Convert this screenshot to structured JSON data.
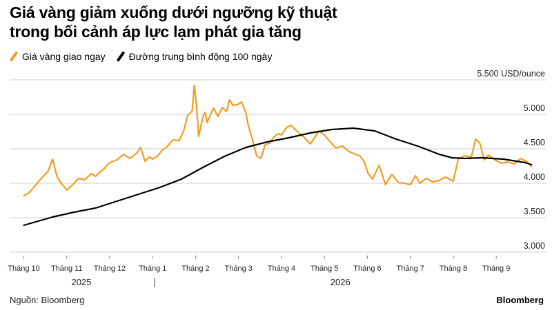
{
  "title_lines": [
    "Giá vàng giảm xuống dưới ngưỡng kỹ thuật",
    "trong bối cảnh áp lực lạm phát gia tăng"
  ],
  "legend": [
    {
      "label": "Giá vàng giao ngay",
      "color": "#f39c1f"
    },
    {
      "label": "Đường trung bình động 100 ngày",
      "color": "#000000"
    }
  ],
  "source": "Nguồn: Bloomberg",
  "brand": "Bloomberg",
  "chart_data": {
    "type": "line",
    "title": "Giá vàng giảm xuống dưới ngưỡng kỹ thuật trong bối cảnh áp lực lạm phát gia tăng",
    "ylabel": "5.500 USD/ounce",
    "ylim": [
      3000,
      5500
    ],
    "yticks": [
      {
        "value": 5500,
        "label": "5.500 USD/ounce"
      },
      {
        "value": 5000,
        "label": "5.000"
      },
      {
        "value": 4500,
        "label": "4.500"
      },
      {
        "value": 4000,
        "label": "4.000"
      },
      {
        "value": 3500,
        "label": "3.500"
      },
      {
        "value": 3000,
        "label": "3.000"
      }
    ],
    "xlim": [
      0,
      12.5
    ],
    "xticks": [
      {
        "value": 0.33,
        "label": "Tháng 10"
      },
      {
        "value": 1.33,
        "label": "Tháng 11"
      },
      {
        "value": 2.33,
        "label": "Tháng 12"
      },
      {
        "value": 3.33,
        "label": "Tháng 1"
      },
      {
        "value": 4.33,
        "label": "Tháng 2"
      },
      {
        "value": 5.33,
        "label": "Tháng 3"
      },
      {
        "value": 6.33,
        "label": "Tháng 4"
      },
      {
        "value": 7.33,
        "label": "Tháng 5"
      },
      {
        "value": 8.33,
        "label": "Tháng 6"
      },
      {
        "value": 9.33,
        "label": "Tháng 7"
      },
      {
        "value": 10.33,
        "label": "Tháng 8"
      },
      {
        "value": 11.33,
        "label": "Tháng 9"
      }
    ],
    "year_labels": [
      {
        "value": 1.67,
        "label": "2025"
      },
      {
        "value": 7.7,
        "label": "2026"
      }
    ],
    "year_divider": 3.37,
    "grid": true,
    "legend_position": "top-left",
    "series": [
      {
        "name": "Giá vàng giao ngay",
        "color": "#f39c1f",
        "x": [
          0.33,
          0.45,
          0.6,
          0.75,
          0.9,
          1.0,
          1.1,
          1.2,
          1.3,
          1.33,
          1.5,
          1.6,
          1.75,
          1.9,
          2.0,
          2.1,
          2.2,
          2.33,
          2.5,
          2.65,
          2.8,
          2.95,
          3.05,
          3.15,
          3.25,
          3.33,
          3.45,
          3.55,
          3.65,
          3.8,
          3.95,
          4.05,
          4.15,
          4.25,
          4.3,
          4.35,
          4.4,
          4.5,
          4.55,
          4.6,
          4.7,
          4.75,
          4.85,
          4.95,
          5.05,
          5.12,
          5.2,
          5.3,
          5.4,
          5.5,
          5.55,
          5.65,
          5.75,
          5.85,
          5.95,
          6.05,
          6.15,
          6.25,
          6.33,
          6.45,
          6.55,
          6.7,
          6.85,
          7.0,
          7.1,
          7.2,
          7.33,
          7.45,
          7.6,
          7.75,
          7.9,
          8.05,
          8.15,
          8.25,
          8.35,
          8.45,
          8.6,
          8.75,
          8.9,
          9.05,
          9.2,
          9.33,
          9.45,
          9.55,
          9.7,
          9.85,
          10.0,
          10.15,
          10.33,
          10.45,
          10.6,
          10.75,
          10.85,
          10.95,
          11.05,
          11.15,
          11.3,
          11.45,
          11.6,
          11.75,
          11.9,
          12.05,
          12.15
        ],
        "values": [
          3820,
          3860,
          3970,
          4080,
          4180,
          4350,
          4100,
          4000,
          3930,
          3900,
          4000,
          4070,
          4050,
          4140,
          4100,
          4160,
          4210,
          4300,
          4340,
          4420,
          4360,
          4430,
          4520,
          4320,
          4380,
          4350,
          4400,
          4480,
          4520,
          4630,
          4620,
          4760,
          4990,
          5050,
          5420,
          5150,
          4680,
          4960,
          5030,
          4880,
          5030,
          5090,
          4970,
          5100,
          5040,
          5210,
          5130,
          5140,
          5180,
          5020,
          4860,
          4640,
          4400,
          4360,
          4560,
          4580,
          4670,
          4720,
          4700,
          4810,
          4840,
          4750,
          4670,
          4570,
          4660,
          4760,
          4700,
          4610,
          4510,
          4540,
          4460,
          4420,
          4400,
          4320,
          4140,
          4060,
          4260,
          3980,
          4130,
          4010,
          4000,
          3980,
          4110,
          4000,
          4070,
          4020,
          4040,
          4090,
          4030,
          4360,
          4400,
          4380,
          4640,
          4580,
          4340,
          4410,
          4340,
          4290,
          4310,
          4280,
          4360,
          4310,
          4240
        ]
      },
      {
        "name": "Đường trung bình động 100 ngày",
        "color": "#000000",
        "x": [
          0.33,
          1.0,
          1.5,
          2.0,
          2.5,
          3.0,
          3.5,
          4.0,
          4.5,
          5.0,
          5.5,
          6.0,
          6.5,
          7.0,
          7.5,
          8.0,
          8.5,
          9.0,
          9.5,
          10.0,
          10.3,
          10.6,
          11.0,
          11.5,
          12.0,
          12.15
        ],
        "values": [
          3390,
          3510,
          3580,
          3640,
          3740,
          3840,
          3940,
          4060,
          4230,
          4390,
          4520,
          4600,
          4660,
          4730,
          4780,
          4800,
          4760,
          4640,
          4540,
          4420,
          4370,
          4360,
          4370,
          4350,
          4300,
          4270
        ]
      }
    ]
  }
}
